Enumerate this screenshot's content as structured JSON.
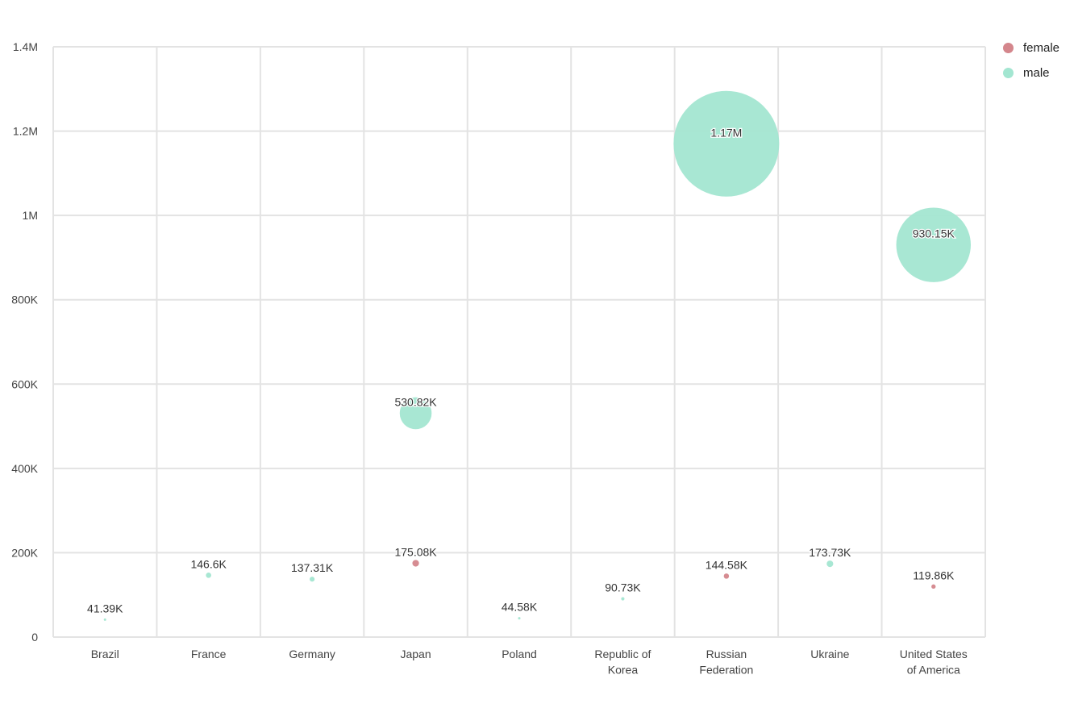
{
  "chart_data": {
    "type": "scatter",
    "subtype": "bubble",
    "title": "",
    "xlabel": "",
    "ylabel": "",
    "categories": [
      "Brazil",
      "France",
      "Germany",
      "Japan",
      "Poland",
      "Republic of Korea",
      "Russian Federation",
      "Ukraine",
      "United States of America"
    ],
    "ylim": [
      0,
      1400000
    ],
    "y_ticks": [
      {
        "value": 0,
        "label": "0"
      },
      {
        "value": 200000,
        "label": "200K"
      },
      {
        "value": 400000,
        "label": "400K"
      },
      {
        "value": 600000,
        "label": "600K"
      },
      {
        "value": 800000,
        "label": "800K"
      },
      {
        "value": 1000000,
        "label": "1M"
      },
      {
        "value": 1200000,
        "label": "1.2M"
      },
      {
        "value": 1400000,
        "label": "1.4M"
      }
    ],
    "grid": true,
    "legend_position": "top-right",
    "series": [
      {
        "name": "female",
        "color": "#d4868c",
        "points": [
          {
            "category": "Japan",
            "value": 175080,
            "label": "175.08K"
          },
          {
            "category": "Russian Federation",
            "value": 144580,
            "label": "144.58K"
          },
          {
            "category": "United States of America",
            "value": 119860,
            "label": "119.86K"
          }
        ]
      },
      {
        "name": "male",
        "color": "#a3e6d1",
        "points": [
          {
            "category": "Brazil",
            "value": 41390,
            "label": "41.39K"
          },
          {
            "category": "France",
            "value": 146600,
            "label": "146.6K"
          },
          {
            "category": "Germany",
            "value": 137310,
            "label": "137.31K"
          },
          {
            "category": "Japan",
            "value": 530820,
            "label": "530.82K"
          },
          {
            "category": "Poland",
            "value": 44580,
            "label": "44.58K"
          },
          {
            "category": "Republic of Korea",
            "value": 90730,
            "label": "90.73K"
          },
          {
            "category": "Russian Federation",
            "value": 1170000,
            "label": "1.17M"
          },
          {
            "category": "Ukraine",
            "value": 173730,
            "label": "173.73K"
          },
          {
            "category": "United States of America",
            "value": 930150,
            "label": "930.15K"
          }
        ]
      }
    ]
  }
}
